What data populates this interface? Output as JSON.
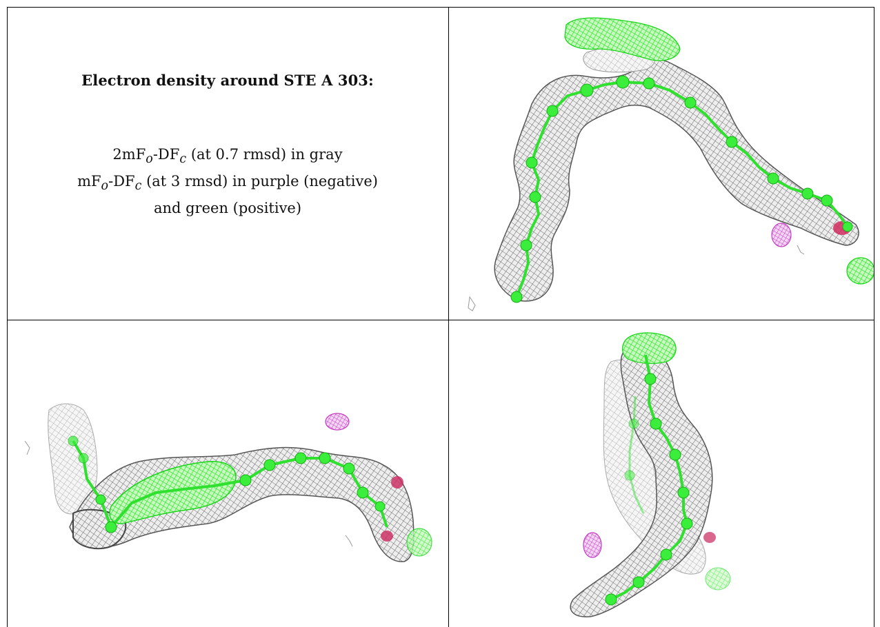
{
  "caption": {
    "title": "Electron density around STE A 303:",
    "line1": {
      "pre": "2mF",
      "sub1": "o",
      "mid": "-DF",
      "sub2": "c",
      "post": " (at 0.7 rmsd) in gray"
    },
    "line2": {
      "pre": "mF",
      "sub1": "o",
      "mid": "-DF",
      "sub2": "c",
      "post": " (at 3 rmsd) in purple (negative)"
    },
    "line3": "and green (positive)"
  },
  "colors": {
    "mesh_gray": "#7a7a7a",
    "mesh_dark": "#555555",
    "model_green": "#33e633",
    "positive_green": "#22ee22",
    "negative_purple": "#cc44cc",
    "oxygen_red": "#cc2255"
  },
  "panels": {
    "top_right": {
      "icon": "electron-density-view-1"
    },
    "bottom_left": {
      "icon": "electron-density-view-2"
    },
    "bottom_right": {
      "icon": "electron-density-view-3"
    }
  }
}
